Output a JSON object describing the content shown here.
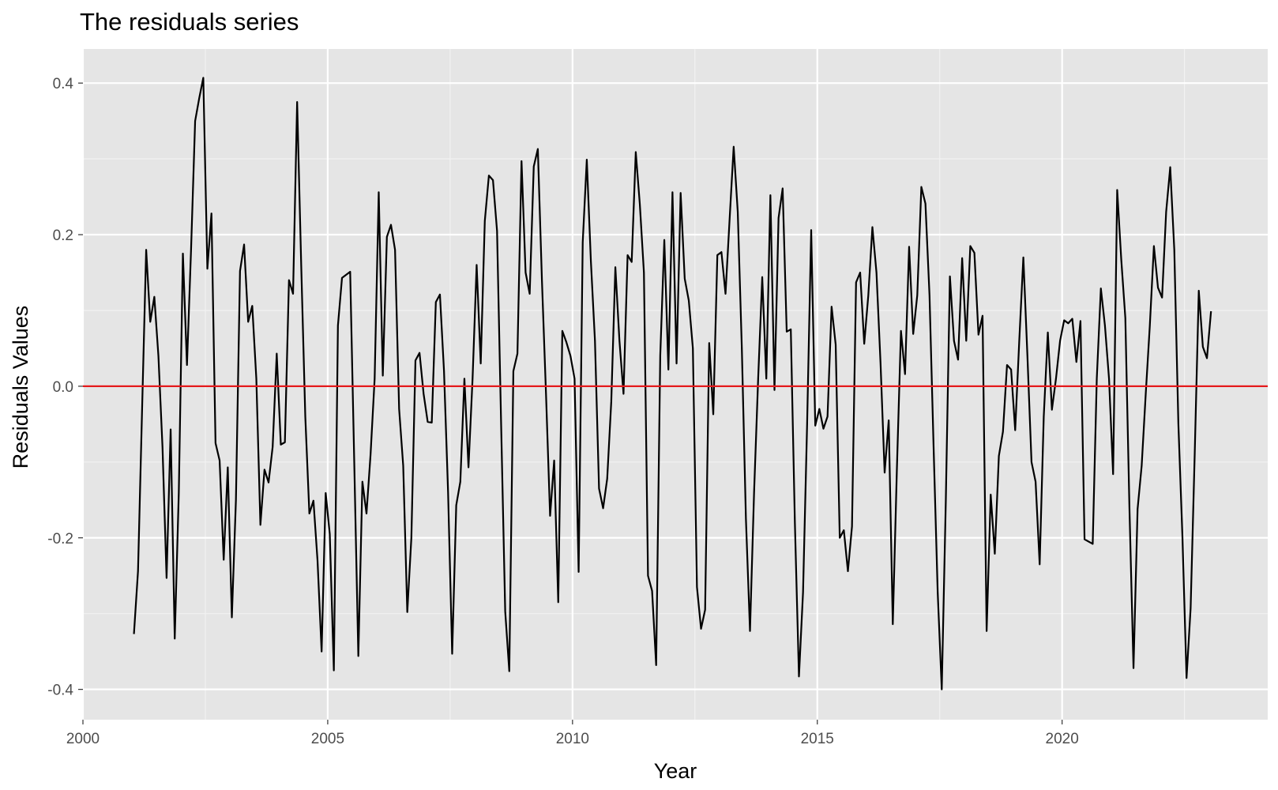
{
  "chart_data": {
    "type": "line",
    "title": "The residuals series",
    "xlabel": "Year",
    "ylabel": "Residuals Values",
    "xlim": [
      2000,
      2024.2
    ],
    "ylim": [
      -0.44,
      0.445
    ],
    "x_ticks": [
      2000,
      2005,
      2010,
      2015,
      2020
    ],
    "x_tick_labels": [
      "2000",
      "2005",
      "2010",
      "2015",
      "2020"
    ],
    "y_ticks": [
      -0.4,
      -0.2,
      0.0,
      0.2,
      0.4
    ],
    "y_tick_labels": [
      "-0.4",
      "-0.2",
      "0.0",
      "0.2",
      "0.4"
    ],
    "grid": true,
    "reference_line": {
      "y": 0,
      "color": "#e41a1c"
    },
    "series_color": "#000000",
    "start": "2001-01",
    "frequency": "monthly",
    "values": [
      -0.327,
      -0.244,
      -0.03,
      0.18,
      0.085,
      0.118,
      0.04,
      -0.08,
      -0.253,
      -0.057,
      -0.333,
      -0.14,
      0.175,
      0.028,
      0.18,
      0.35,
      0.38,
      0.407,
      0.155,
      0.228,
      -0.075,
      -0.098,
      -0.229,
      -0.107,
      -0.305,
      -0.15,
      0.152,
      0.187,
      0.085,
      0.106,
      0.01,
      -0.183,
      -0.11,
      -0.127,
      -0.08,
      0.043,
      -0.077,
      -0.074,
      0.14,
      0.122,
      0.375,
      0.16,
      -0.04,
      -0.168,
      -0.151,
      -0.23,
      -0.35,
      -0.141,
      -0.195,
      -0.375,
      0.08,
      0.143,
      0.147,
      0.151,
      -0.1,
      -0.356,
      -0.126,
      -0.168,
      -0.09,
      0.01,
      0.256,
      0.014,
      0.197,
      0.213,
      0.18,
      -0.03,
      -0.105,
      -0.298,
      -0.2,
      0.034,
      0.044,
      -0.01,
      -0.047,
      -0.048,
      0.111,
      0.121,
      0.02,
      -0.14,
      -0.353,
      -0.157,
      -0.126,
      0.01,
      -0.107,
      0.01,
      0.16,
      0.03,
      0.218,
      0.278,
      0.272,
      0.205,
      -0.05,
      -0.297,
      -0.376,
      0.02,
      0.043,
      0.297,
      0.15,
      0.122,
      0.29,
      0.313,
      0.14,
      -0.01,
      -0.171,
      -0.098,
      -0.285,
      0.073,
      0.058,
      0.04,
      0.01,
      -0.245,
      0.19,
      0.299,
      0.165,
      0.06,
      -0.135,
      -0.161,
      -0.122,
      -0.02,
      0.157,
      0.06,
      -0.01,
      0.173,
      0.164,
      0.309,
      0.24,
      0.15,
      -0.25,
      -0.27,
      -0.368,
      0.04,
      0.193,
      0.022,
      0.256,
      0.03,
      0.255,
      0.142,
      0.113,
      0.05,
      -0.265,
      -0.32,
      -0.295,
      0.057,
      -0.037,
      0.173,
      0.177,
      0.122,
      0.22,
      0.316,
      0.23,
      0.05,
      -0.175,
      -0.323,
      -0.14,
      0.01,
      0.144,
      0.01,
      0.252,
      -0.005,
      0.222,
      0.261,
      0.072,
      0.075,
      -0.18,
      -0.383,
      -0.272,
      -0.05,
      0.206,
      -0.052,
      -0.03,
      -0.056,
      -0.04,
      0.105,
      0.055,
      -0.2,
      -0.19,
      -0.244,
      -0.185,
      0.137,
      0.15,
      0.056,
      0.12,
      0.21,
      0.15,
      0.03,
      -0.114,
      -0.045,
      -0.314,
      -0.11,
      0.073,
      0.016,
      0.184,
      0.069,
      0.12,
      0.263,
      0.241,
      0.12,
      -0.08,
      -0.271,
      -0.4,
      -0.15,
      0.145,
      0.06,
      0.035,
      0.169,
      0.06,
      0.185,
      0.176,
      0.068,
      0.093,
      -0.323,
      -0.143,
      -0.221,
      -0.092,
      -0.06,
      0.028,
      0.022,
      -0.058,
      0.06,
      0.17,
      0.04,
      -0.1,
      -0.126,
      -0.235,
      -0.04,
      0.071,
      -0.031,
      0.01,
      0.06,
      0.087,
      0.083,
      0.089,
      0.032,
      0.086,
      -0.202,
      -0.205,
      -0.208,
      0.01,
      0.129,
      0.08,
      0.01,
      -0.116,
      0.259,
      0.167,
      0.09,
      -0.16,
      -0.372,
      -0.162,
      -0.105,
      -0.01,
      0.08,
      0.185,
      0.13,
      0.117,
      0.23,
      0.289,
      0.18,
      -0.05,
      -0.2,
      -0.385,
      -0.293,
      -0.09,
      0.126,
      0.052,
      0.037,
      0.099
    ]
  }
}
